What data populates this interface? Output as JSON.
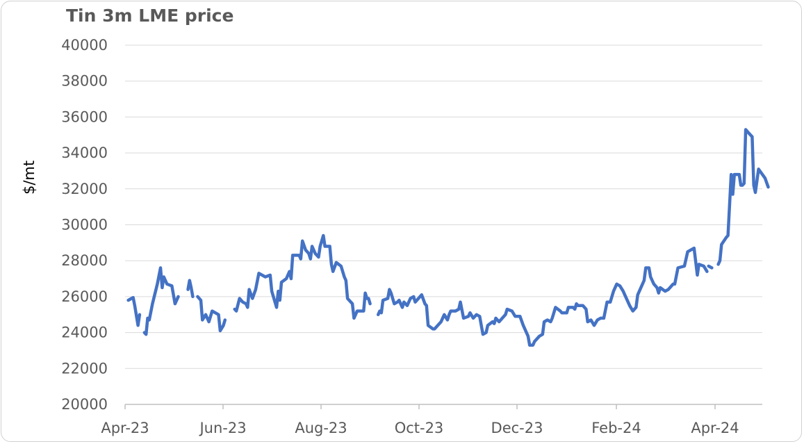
{
  "chart_data": {
    "type": "line",
    "title": "Tin 3m LME price",
    "xlabel": "",
    "ylabel": "$/mt",
    "ylim": [
      20000,
      40000
    ],
    "yticks": [
      20000,
      22000,
      24000,
      26000,
      28000,
      30000,
      32000,
      34000,
      36000,
      38000,
      40000
    ],
    "xticks": [
      "Apr-23",
      "Jun-23",
      "Aug-23",
      "Oct-23",
      "Dec-23",
      "Feb-24",
      "Apr-24"
    ],
    "x_range": [
      "2023-04-01",
      "2024-05-20"
    ],
    "grid": true,
    "line_color": "#4472C4",
    "series": [
      {
        "name": "",
        "segments": [
          [
            [
              "2023-04-03",
              25800
            ],
            [
              "2023-04-05",
              25900
            ],
            [
              "2023-04-06",
              25950
            ],
            [
              "2023-04-07",
              25500
            ],
            [
              "2023-04-09",
              24400
            ],
            [
              "2023-04-10",
              25000
            ]
          ],
          [
            [
              "2023-04-13",
              24000
            ],
            [
              "2023-04-14",
              23900
            ],
            [
              "2023-04-15",
              24800
            ],
            [
              "2023-04-16",
              24700
            ],
            [
              "2023-04-18",
              25600
            ],
            [
              "2023-04-21",
              26700
            ],
            [
              "2023-04-23",
              27600
            ],
            [
              "2023-04-24",
              26500
            ],
            [
              "2023-04-25",
              27100
            ],
            [
              "2023-04-27",
              26700
            ],
            [
              "2023-04-30",
              26600
            ],
            [
              "2023-05-02",
              25600
            ],
            [
              "2023-05-04",
              26000
            ]
          ],
          [
            [
              "2023-05-10",
              26400
            ],
            [
              "2023-05-11",
              26900
            ],
            [
              "2023-05-12",
              26500
            ],
            [
              "2023-05-13",
              26000
            ]
          ],
          [
            [
              "2023-05-16",
              26000
            ],
            [
              "2023-05-18",
              25800
            ],
            [
              "2023-05-19",
              24700
            ],
            [
              "2023-05-21",
              25000
            ],
            [
              "2023-05-23",
              24600
            ],
            [
              "2023-05-25",
              25200
            ],
            [
              "2023-05-29",
              25000
            ],
            [
              "2023-05-30",
              24100
            ],
            [
              "2023-06-01",
              24400
            ],
            [
              "2023-06-02",
              24700
            ]
          ],
          [
            [
              "2023-06-08",
              25300
            ],
            [
              "2023-06-09",
              25200
            ],
            [
              "2023-06-11",
              25900
            ],
            [
              "2023-06-13",
              25700
            ],
            [
              "2023-06-15",
              25600
            ],
            [
              "2023-06-16",
              25400
            ],
            [
              "2023-06-17",
              26400
            ],
            [
              "2023-06-19",
              25900
            ],
            [
              "2023-06-21",
              26400
            ],
            [
              "2023-06-23",
              27300
            ],
            [
              "2023-06-27",
              27100
            ],
            [
              "2023-06-30",
              27200
            ],
            [
              "2023-07-01",
              26300
            ],
            [
              "2023-07-04",
              25400
            ],
            [
              "2023-07-05",
              26300
            ],
            [
              "2023-07-06",
              25800
            ],
            [
              "2023-07-07",
              26800
            ],
            [
              "2023-07-10",
              27000
            ],
            [
              "2023-07-12",
              27400
            ],
            [
              "2023-07-13",
              27000
            ],
            [
              "2023-07-14",
              28300
            ],
            [
              "2023-07-18",
              28300
            ],
            [
              "2023-07-19",
              28100
            ],
            [
              "2023-07-20",
              29100
            ],
            [
              "2023-07-22",
              28600
            ],
            [
              "2023-07-24",
              28400
            ],
            [
              "2023-07-25",
              28100
            ],
            [
              "2023-07-26",
              28800
            ],
            [
              "2023-07-28",
              28400
            ],
            [
              "2023-07-30",
              28200
            ],
            [
              "2023-07-31",
              28800
            ],
            [
              "2023-08-02",
              29400
            ],
            [
              "2023-08-03",
              28800
            ],
            [
              "2023-08-06",
              28800
            ],
            [
              "2023-08-07",
              27800
            ],
            [
              "2023-08-08",
              27400
            ],
            [
              "2023-08-10",
              27900
            ],
            [
              "2023-08-13",
              27700
            ],
            [
              "2023-08-15",
              27100
            ],
            [
              "2023-08-16",
              26900
            ],
            [
              "2023-08-17",
              25900
            ],
            [
              "2023-08-20",
              25600
            ],
            [
              "2023-08-21",
              24800
            ],
            [
              "2023-08-23",
              25200
            ],
            [
              "2023-08-25",
              25200
            ],
            [
              "2023-08-27",
              25200
            ],
            [
              "2023-08-28",
              26200
            ],
            [
              "2023-08-29",
              25900
            ]
          ],
          [
            [
              "2023-08-30",
              25900
            ],
            [
              "2023-08-31",
              25600
            ]
          ],
          [
            [
              "2023-09-05",
              25000
            ],
            [
              "2023-09-06",
              25200
            ],
            [
              "2023-09-07",
              25100
            ],
            [
              "2023-09-08",
              25800
            ],
            [
              "2023-09-11",
              25900
            ],
            [
              "2023-09-12",
              26400
            ],
            [
              "2023-09-13",
              26200
            ],
            [
              "2023-09-15",
              25600
            ],
            [
              "2023-09-17",
              25700
            ],
            [
              "2023-09-18",
              25800
            ],
            [
              "2023-09-20",
              25400
            ],
            [
              "2023-09-21",
              25700
            ],
            [
              "2023-09-23",
              25500
            ],
            [
              "2023-09-25",
              25900
            ],
            [
              "2023-09-27",
              26000
            ],
            [
              "2023-09-28",
              25700
            ],
            [
              "2023-09-30",
              25900
            ],
            [
              "2023-10-02",
              26100
            ],
            [
              "2023-10-04",
              25600
            ],
            [
              "2023-10-05",
              25500
            ],
            [
              "2023-10-06",
              24400
            ],
            [
              "2023-10-09",
              24200
            ],
            [
              "2023-10-10",
              24200
            ],
            [
              "2023-10-12",
              24400
            ],
            [
              "2023-10-14",
              24600
            ],
            [
              "2023-10-16",
              25000
            ],
            [
              "2023-10-18",
              24700
            ],
            [
              "2023-10-19",
              25000
            ],
            [
              "2023-10-20",
              25200
            ],
            [
              "2023-10-23",
              25200
            ],
            [
              "2023-10-25",
              25300
            ],
            [
              "2023-10-26",
              25700
            ],
            [
              "2023-10-28",
              24800
            ],
            [
              "2023-10-31",
              24900
            ],
            [
              "2023-11-01",
              25100
            ],
            [
              "2023-11-03",
              24800
            ],
            [
              "2023-11-05",
              25000
            ],
            [
              "2023-11-07",
              24900
            ],
            [
              "2023-11-08",
              24400
            ],
            [
              "2023-11-09",
              23900
            ],
            [
              "2023-11-11",
              24000
            ],
            [
              "2023-11-12",
              24400
            ],
            [
              "2023-11-15",
              24600
            ],
            [
              "2023-11-16",
              24500
            ],
            [
              "2023-11-17",
              24800
            ],
            [
              "2023-11-19",
              24600
            ],
            [
              "2023-11-21",
              24800
            ],
            [
              "2023-11-23",
              25000
            ],
            [
              "2023-11-24",
              25300
            ],
            [
              "2023-11-27",
              25200
            ],
            [
              "2023-11-29",
              24900
            ],
            [
              "2023-12-02",
              24900
            ],
            [
              "2023-12-04",
              24400
            ],
            [
              "2023-12-07",
              23800
            ],
            [
              "2023-12-08",
              23300
            ],
            [
              "2023-12-10",
              23300
            ],
            [
              "2023-12-11",
              23500
            ],
            [
              "2023-12-14",
              23800
            ],
            [
              "2023-12-16",
              23900
            ],
            [
              "2023-12-17",
              24600
            ],
            [
              "2023-12-19",
              24700
            ],
            [
              "2023-12-21",
              24600
            ],
            [
              "2023-12-22",
              24800
            ],
            [
              "2023-12-24",
              25400
            ],
            [
              "2023-12-27",
              25200
            ],
            [
              "2023-12-28",
              25100
            ],
            [
              "2023-12-31",
              25100
            ],
            [
              "2024-01-01",
              25400
            ],
            [
              "2024-01-04",
              25400
            ],
            [
              "2024-01-05",
              25300
            ],
            [
              "2024-01-06",
              25600
            ],
            [
              "2024-01-07",
              25500
            ],
            [
              "2024-01-10",
              25500
            ],
            [
              "2024-01-12",
              25300
            ],
            [
              "2024-01-13",
              24600
            ],
            [
              "2024-01-15",
              24700
            ],
            [
              "2024-01-17",
              24400
            ],
            [
              "2024-01-19",
              24700
            ],
            [
              "2024-01-21",
              24800
            ],
            [
              "2024-01-23",
              24800
            ],
            [
              "2024-01-25",
              25700
            ],
            [
              "2024-01-27",
              25700
            ],
            [
              "2024-01-29",
              26300
            ],
            [
              "2024-01-31",
              26700
            ],
            [
              "2024-02-02",
              26600
            ],
            [
              "2024-02-04",
              26300
            ],
            [
              "2024-02-05",
              26100
            ],
            [
              "2024-02-08",
              25500
            ],
            [
              "2024-02-10",
              25200
            ],
            [
              "2024-02-12",
              25400
            ],
            [
              "2024-02-13",
              26100
            ],
            [
              "2024-02-16",
              26700
            ],
            [
              "2024-02-17",
              26900
            ],
            [
              "2024-02-18",
              27600
            ],
            [
              "2024-02-20",
              27600
            ],
            [
              "2024-02-21",
              27100
            ],
            [
              "2024-02-23",
              26700
            ],
            [
              "2024-02-25",
              26500
            ],
            [
              "2024-02-26",
              26200
            ],
            [
              "2024-02-27",
              26500
            ],
            [
              "2024-03-01",
              26300
            ],
            [
              "2024-03-03",
              26400
            ],
            [
              "2024-03-05",
              26600
            ],
            [
              "2024-03-06",
              26700
            ],
            [
              "2024-03-07",
              26700
            ],
            [
              "2024-03-09",
              27600
            ],
            [
              "2024-03-13",
              27700
            ],
            [
              "2024-03-15",
              28500
            ],
            [
              "2024-03-19",
              28700
            ],
            [
              "2024-03-21",
              27200
            ],
            [
              "2024-03-22",
              27800
            ],
            [
              "2024-03-25",
              27700
            ],
            [
              "2024-03-27",
              27400
            ]
          ],
          [
            [
              "2024-03-28",
              27700
            ],
            [
              "2024-03-30",
              27600
            ]
          ],
          [
            [
              "2024-04-03",
              27800
            ],
            [
              "2024-04-04",
              28000
            ],
            [
              "2024-04-05",
              28900
            ],
            [
              "2024-04-08",
              29300
            ],
            [
              "2024-04-09",
              29400
            ],
            [
              "2024-04-11",
              32800
            ],
            [
              "2024-04-12",
              31700
            ],
            [
              "2024-04-13",
              32800
            ],
            [
              "2024-04-16",
              32800
            ],
            [
              "2024-04-17",
              32200
            ],
            [
              "2024-04-18",
              32200
            ],
            [
              "2024-04-19",
              32300
            ],
            [
              "2024-04-20",
              35300
            ],
            [
              "2024-04-22",
              35100
            ],
            [
              "2024-04-24",
              34900
            ],
            [
              "2024-04-25",
              32200
            ],
            [
              "2024-04-26",
              31800
            ],
            [
              "2024-04-28",
              33100
            ],
            [
              "2024-05-02",
              32600
            ],
            [
              "2024-05-04",
              32100
            ]
          ]
        ]
      }
    ]
  }
}
